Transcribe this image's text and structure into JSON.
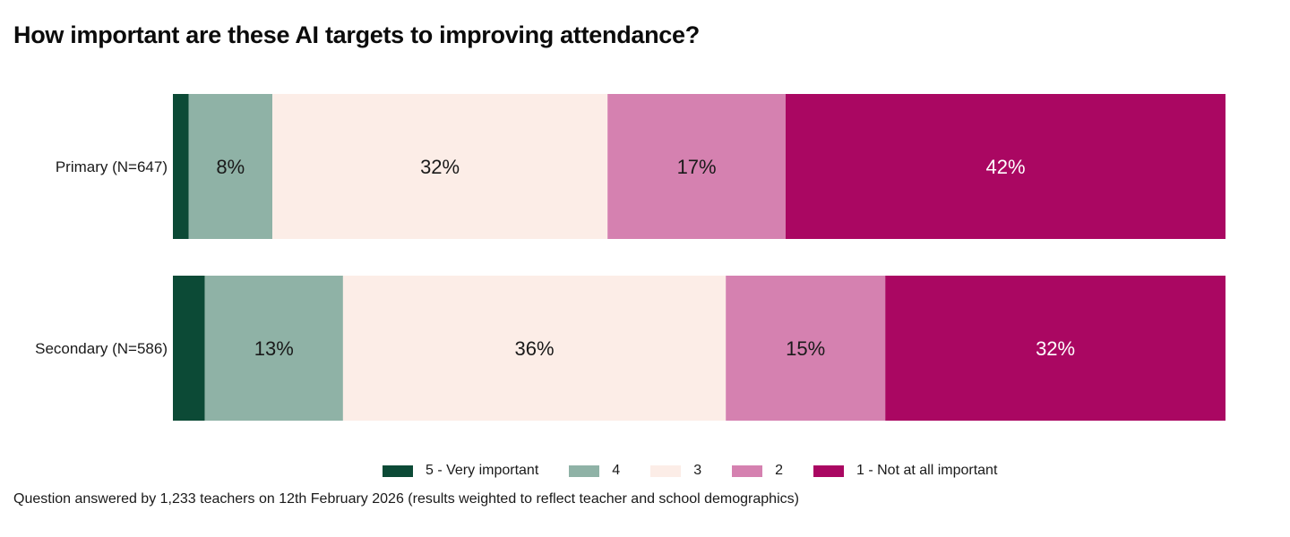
{
  "chart_data": {
    "type": "bar",
    "orientation": "horizontal",
    "stacked": true,
    "title": "How important are these AI targets to improving attendance?",
    "categories": [
      "Primary (N=647)",
      "Secondary (N=586)"
    ],
    "series": [
      {
        "name": "5 - Very important",
        "color": "#0c4a36",
        "values": [
          1.5,
          3
        ],
        "labels": [
          "",
          ""
        ],
        "label_color": "#ffffff"
      },
      {
        "name": "4",
        "color": "#8fb2a6",
        "values": [
          8,
          13
        ],
        "labels": [
          "8%",
          "13%"
        ],
        "label_color": "#1a1a1a"
      },
      {
        "name": "3",
        "color": "#fcede7",
        "values": [
          32,
          36
        ],
        "labels": [
          "32%",
          "36%"
        ],
        "label_color": "#1a1a1a"
      },
      {
        "name": "2",
        "color": "#d581b0",
        "values": [
          17,
          15
        ],
        "labels": [
          "17%",
          "15%"
        ],
        "label_color": "#1a1a1a"
      },
      {
        "name": "1 - Not at all important",
        "color": "#aa0762",
        "values": [
          42,
          32
        ],
        "labels": [
          "42%",
          "32%"
        ],
        "label_color": "#ffffff"
      }
    ],
    "xlim": [
      0,
      100
    ],
    "grid": false,
    "legend_position": "bottom",
    "footnote": "Question answered by 1,233 teachers on 12th February 2026 (results weighted to reflect teacher and school demographics)"
  }
}
